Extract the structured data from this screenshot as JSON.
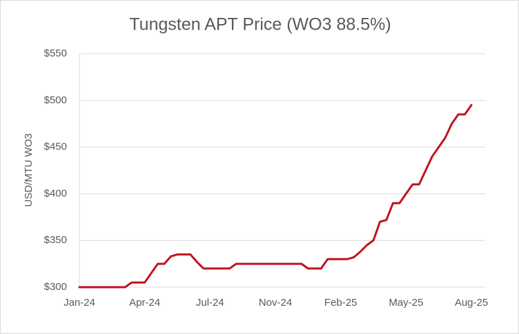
{
  "chart_data": {
    "type": "line",
    "title": "Tungsten APT Price (WO3 88.5%)",
    "y_label": "USD/MTU WO3",
    "categories": [
      "Jan-24",
      null,
      null,
      null,
      null,
      null,
      null,
      null,
      null,
      null,
      "Apr-24",
      null,
      null,
      null,
      null,
      null,
      null,
      null,
      null,
      null,
      "Jul-24",
      null,
      null,
      null,
      null,
      null,
      null,
      null,
      null,
      null,
      "Nov-24",
      null,
      null,
      null,
      null,
      null,
      null,
      null,
      null,
      null,
      "Feb-25",
      null,
      null,
      null,
      null,
      null,
      null,
      null,
      null,
      null,
      "May-25",
      null,
      null,
      null,
      null,
      null,
      null,
      null,
      null,
      null,
      "Aug-25"
    ],
    "values": [
      300,
      300,
      300,
      300,
      300,
      300,
      300,
      300,
      305,
      305,
      305,
      315,
      325,
      325,
      333,
      335,
      335,
      335,
      327,
      320,
      320,
      320,
      320,
      320,
      325,
      325,
      325,
      325,
      325,
      325,
      325,
      325,
      325,
      325,
      325,
      320,
      320,
      320,
      330,
      330,
      330,
      330,
      332,
      338,
      345,
      350,
      370,
      372,
      390,
      390,
      400,
      410,
      410,
      425,
      440,
      450,
      460,
      475,
      485,
      485,
      495
    ],
    "color": "#c0121e",
    "ylim": [
      300,
      550
    ],
    "yticks": [
      {
        "value": 300,
        "label": "$300"
      },
      {
        "value": 350,
        "label": "$350"
      },
      {
        "value": 400,
        "label": "$400"
      },
      {
        "value": 450,
        "label": "$450"
      },
      {
        "value": 500,
        "label": "$500"
      },
      {
        "value": 550,
        "label": "$550"
      }
    ],
    "grid": true
  }
}
